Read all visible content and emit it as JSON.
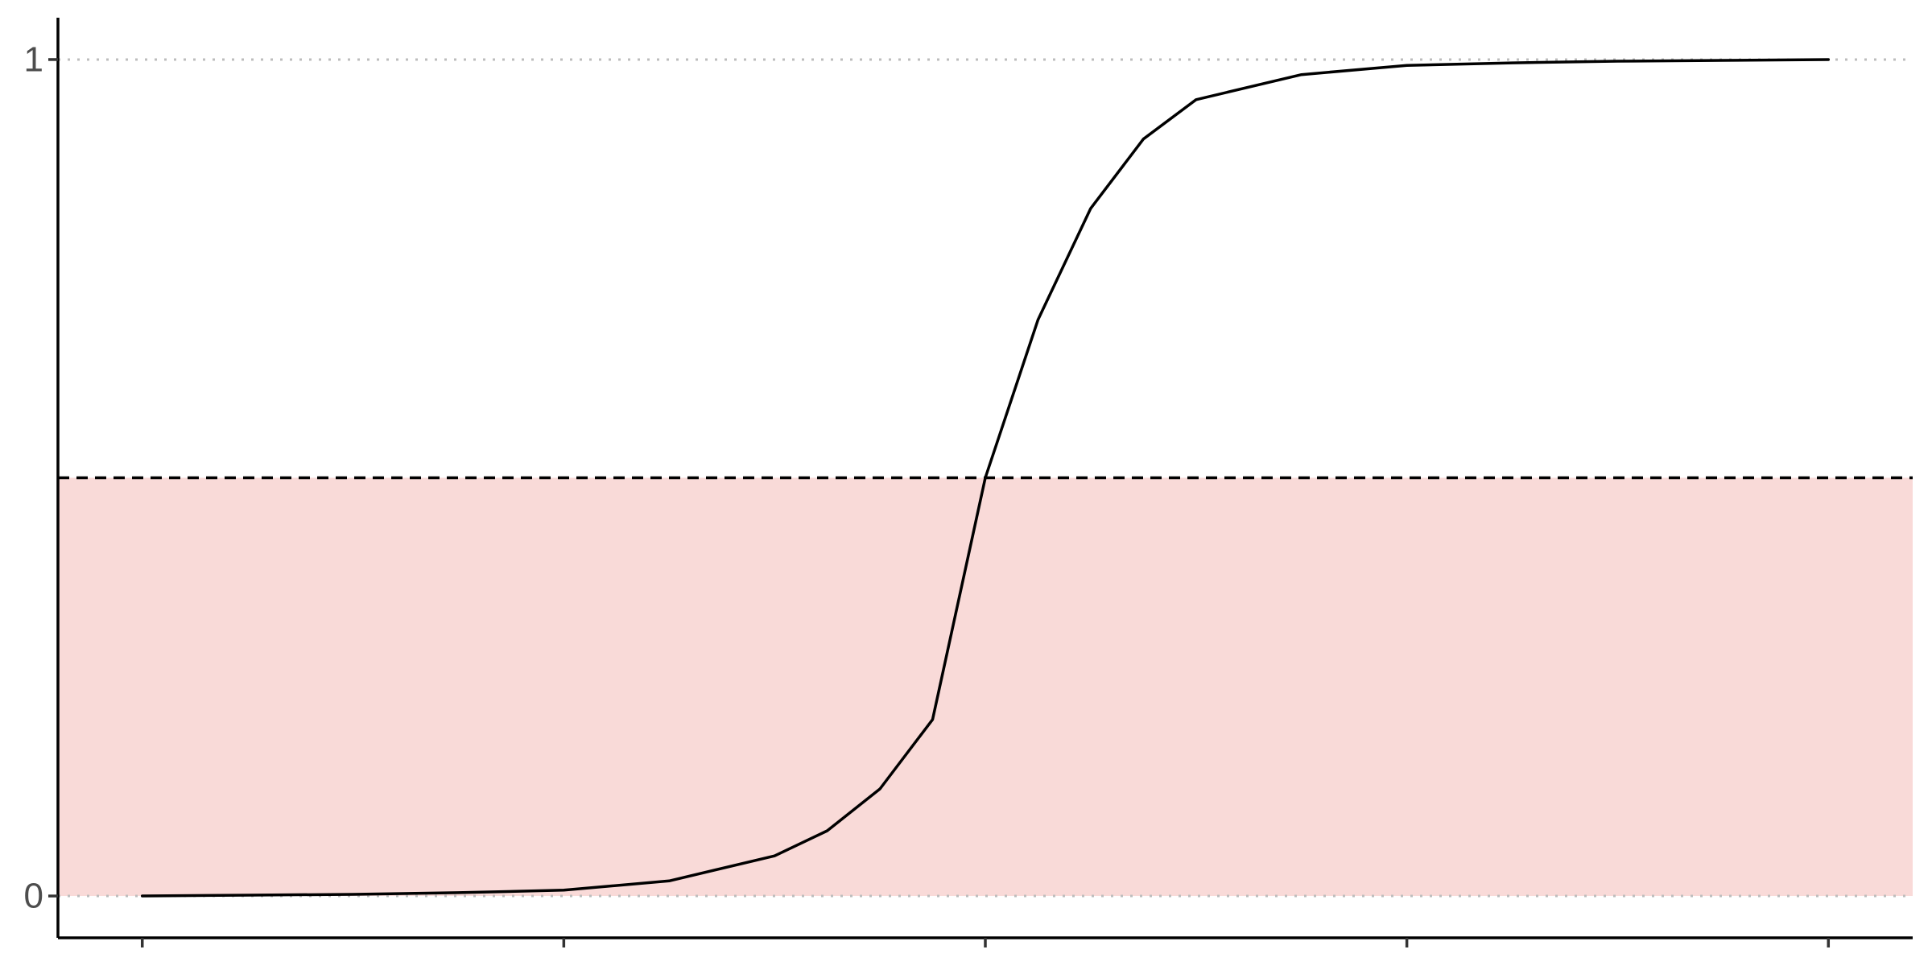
{
  "chart_data": {
    "type": "line",
    "title": "",
    "xlabel": "",
    "ylabel": "",
    "xlim": [
      -0.2,
      4.2
    ],
    "ylim": [
      -0.05,
      1.05
    ],
    "x_ticks": [
      0,
      1,
      2,
      3,
      4
    ],
    "x_tick_labels": [
      "",
      "",
      "",
      "",
      ""
    ],
    "y_ticks": [
      0,
      1
    ],
    "y_tick_labels": [
      "0",
      "1"
    ],
    "grid": false,
    "reference_lines": [
      {
        "axis": "y",
        "value": 0,
        "style": "dotted",
        "color": "#bdbdbd"
      },
      {
        "axis": "y",
        "value": 1,
        "style": "dotted",
        "color": "#bdbdbd"
      },
      {
        "axis": "y",
        "value": 0.5,
        "style": "dashed",
        "color": "#000000"
      }
    ],
    "shaded_region": {
      "ymin": 0,
      "ymax": 0.5,
      "color": "#f9dad8"
    },
    "series": [
      {
        "color": "#000000",
        "x": [
          0,
          0.25,
          0.5,
          0.75,
          1,
          1.25,
          1.5,
          1.625,
          1.75,
          1.875,
          2,
          2.125,
          2.25,
          2.375,
          2.5,
          2.75,
          3,
          3.25,
          3.5,
          3.75,
          4
        ],
        "y": [
          0.0,
          0.001,
          0.002,
          0.004,
          0.007,
          0.018,
          0.048,
          0.078,
          0.128,
          0.211,
          0.5,
          0.689,
          0.822,
          0.905,
          0.952,
          0.982,
          0.993,
          0.996,
          0.998,
          0.999,
          1.0
        ]
      }
    ]
  }
}
